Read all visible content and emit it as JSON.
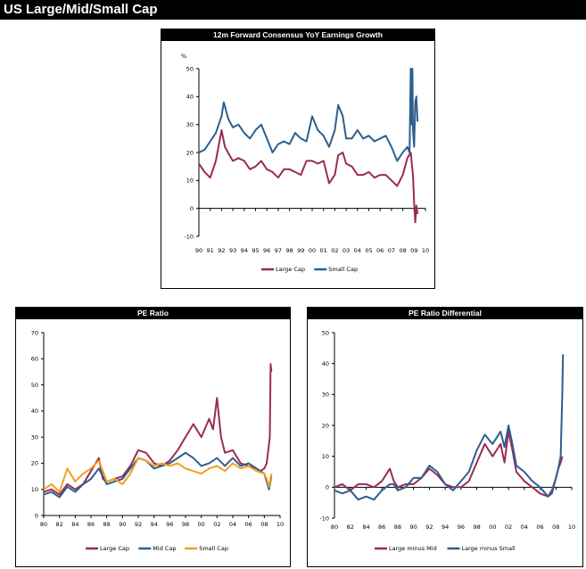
{
  "page": {
    "title": "US Large/Mid/Small Cap"
  },
  "colors": {
    "large": "#9a2b55",
    "mid": "#2e5f8e",
    "small": "#f0a020",
    "axis": "#000000"
  },
  "chart_data": [
    {
      "id": "earnings",
      "type": "line",
      "title": "12m Forward Consensus YoY Earnings Growth",
      "ylabel": "%",
      "ylim": [
        -10,
        50
      ],
      "yticks": [
        -10,
        0,
        10,
        20,
        30,
        40,
        50
      ],
      "xlim": [
        1990,
        2010
      ],
      "xticks": [
        "90",
        "91",
        "92",
        "93",
        "94",
        "95",
        "96",
        "97",
        "98",
        "99",
        "00",
        "01",
        "02",
        "03",
        "04",
        "05",
        "06",
        "07",
        "08",
        "09",
        "10"
      ],
      "legend": [
        "Large Cap",
        "Small Cap"
      ],
      "series": [
        {
          "name": "Large Cap",
          "color_key": "large",
          "x": [
            1990,
            1990.5,
            1991,
            1991.5,
            1992,
            1992.3,
            1992.7,
            1993,
            1993.5,
            1994,
            1994.5,
            1995,
            1995.5,
            1996,
            1996.5,
            1997,
            1997.5,
            1998,
            1998.5,
            1999,
            1999.5,
            2000,
            2000.5,
            2001,
            2001.5,
            2002,
            2002.3,
            2002.7,
            2003,
            2003.5,
            2004,
            2004.5,
            2005,
            2005.5,
            2006,
            2006.5,
            2007,
            2007.5,
            2008,
            2008.4,
            2008.7,
            2008.9,
            2009.0,
            2009.1,
            2009.2,
            2009.3
          ],
          "y": [
            16,
            13,
            11,
            17,
            28,
            22,
            19,
            17,
            18,
            17,
            14,
            15,
            17,
            14,
            13,
            11,
            14,
            14,
            13,
            12,
            17,
            17,
            16,
            17,
            9,
            12,
            19,
            20,
            16,
            15,
            12,
            12,
            13,
            11,
            12,
            12,
            10,
            8,
            12,
            18,
            20,
            12,
            2,
            -5,
            1,
            -2
          ]
        },
        {
          "name": "Small Cap",
          "color_key": "mid",
          "x": [
            1990,
            1990.5,
            1991,
            1991.5,
            1992,
            1992.2,
            1992.6,
            1993,
            1993.5,
            1994,
            1994.5,
            1995,
            1995.5,
            1996,
            1996.5,
            1997,
            1997.5,
            1998,
            1998.5,
            1999,
            1999.5,
            2000,
            2000.5,
            2001,
            2001.5,
            2002,
            2002.3,
            2002.7,
            2003,
            2003.5,
            2004,
            2004.5,
            2005,
            2005.5,
            2006,
            2006.5,
            2007,
            2007.5,
            2008,
            2008.4,
            2008.6,
            2008.7,
            2008.8,
            2008.85,
            2008.9,
            2009.0,
            2009.1,
            2009.2,
            2009.3
          ],
          "y": [
            20,
            21,
            24,
            27,
            33,
            38,
            32,
            29,
            30,
            27,
            25,
            28,
            30,
            25,
            20,
            23,
            24,
            23,
            27,
            25,
            24,
            33,
            28,
            26,
            22,
            28,
            37,
            33,
            25,
            25,
            28,
            25,
            26,
            24,
            25,
            26,
            22,
            17,
            20,
            22,
            20,
            50,
            30,
            50,
            28,
            22,
            38,
            40,
            31
          ]
        }
      ]
    },
    {
      "id": "pe",
      "type": "line",
      "title": "PE Ratio",
      "ylim": [
        0,
        70
      ],
      "yticks": [
        0,
        10,
        20,
        30,
        40,
        50,
        60,
        70
      ],
      "xlim": [
        1980,
        2010
      ],
      "xticks": [
        "80",
        "82",
        "84",
        "86",
        "88",
        "90",
        "92",
        "94",
        "96",
        "98",
        "00",
        "02",
        "04",
        "06",
        "08",
        "10"
      ],
      "legend": [
        "Large Cap",
        "Mid Cap",
        "Small Cap"
      ],
      "series": [
        {
          "name": "Large Cap",
          "color_key": "large",
          "x": [
            1980,
            1981,
            1982,
            1983,
            1984,
            1985,
            1986,
            1987,
            1987.5,
            1988,
            1989,
            1990,
            1991,
            1992,
            1993,
            1994,
            1995,
            1996,
            1997,
            1998,
            1999,
            2000,
            2001,
            2001.5,
            2002,
            2002.5,
            2003,
            2004,
            2005,
            2006,
            2007,
            2007.5,
            2008,
            2008.3,
            2008.5,
            2008.7,
            2008.8,
            2008.9
          ],
          "y": [
            9,
            10,
            8,
            12,
            10,
            12,
            17,
            22,
            14,
            13,
            14,
            15,
            19,
            25,
            24,
            20,
            19,
            21,
            25,
            30,
            35,
            30,
            37,
            33,
            45,
            30,
            24,
            25,
            20,
            19,
            18,
            17,
            18,
            20,
            25,
            30,
            58,
            55
          ]
        },
        {
          "name": "Mid Cap",
          "color_key": "mid",
          "x": [
            1980,
            1981,
            1982,
            1983,
            1984,
            1985,
            1986,
            1987,
            1988,
            1989,
            1990,
            1991,
            1992,
            1993,
            1994,
            1995,
            1996,
            1997,
            1998,
            1999,
            2000,
            2001,
            2002,
            2003,
            2004,
            2005,
            2006,
            2007,
            2008,
            2008.3,
            2008.6,
            2008.9
          ],
          "y": [
            8,
            9,
            7,
            11,
            9,
            12,
            14,
            18,
            12,
            13,
            14,
            18,
            22,
            21,
            18,
            19,
            20,
            22,
            24,
            22,
            19,
            20,
            22,
            19,
            22,
            19,
            20,
            18,
            16,
            13,
            10,
            15
          ]
        },
        {
          "name": "Small Cap",
          "color_key": "small",
          "x": [
            1980,
            1981,
            1982,
            1983,
            1984,
            1985,
            1986,
            1987,
            1988,
            1989,
            1990,
            1991,
            1992,
            1993,
            1994,
            1995,
            1996,
            1997,
            1998,
            1999,
            2000,
            2001,
            2002,
            2003,
            2004,
            2005,
            2006,
            2007,
            2008,
            2008.3,
            2008.6,
            2008.9
          ],
          "y": [
            10,
            12,
            9,
            18,
            13,
            16,
            18,
            21,
            13,
            14,
            12,
            16,
            22,
            21,
            19,
            20,
            19,
            20,
            18,
            17,
            16,
            18,
            19,
            17,
            20,
            18,
            19,
            17,
            16,
            14,
            11,
            16
          ]
        }
      ]
    },
    {
      "id": "diff",
      "type": "line",
      "title": "PE Ratio Differential",
      "ylim": [
        -10,
        50
      ],
      "yticks": [
        -10,
        0,
        10,
        20,
        30,
        40,
        50
      ],
      "xlim": [
        1980,
        2010
      ],
      "xticks": [
        "80",
        "82",
        "84",
        "86",
        "88",
        "90",
        "92",
        "94",
        "96",
        "98",
        "00",
        "02",
        "04",
        "06",
        "08",
        "10"
      ],
      "legend": [
        "Large minus Mid",
        "Large minus Small"
      ],
      "series": [
        {
          "name": "Large minus Mid",
          "color_key": "large",
          "x": [
            1980,
            1981,
            1982,
            1983,
            1984,
            1985,
            1986,
            1987,
            1987.5,
            1988,
            1989,
            1990,
            1991,
            1992,
            1993,
            1994,
            1995,
            1996,
            1997,
            1998,
            1999,
            2000,
            2001,
            2001.5,
            2002,
            2002.5,
            2003,
            2004,
            2005,
            2006,
            2007,
            2007.5,
            2008,
            2008.3,
            2008.6,
            2008.8
          ],
          "y": [
            0,
            1,
            -1,
            1,
            1,
            0,
            2,
            6,
            2,
            0,
            1,
            1,
            3,
            6,
            4,
            1,
            0,
            0,
            2,
            8,
            14,
            10,
            14,
            8,
            18,
            12,
            5,
            2,
            0,
            -2,
            -3,
            -1,
            3,
            6,
            8,
            10
          ]
        },
        {
          "name": "Large minus Small",
          "color_key": "mid",
          "x": [
            1980,
            1981,
            1982,
            1983,
            1984,
            1985,
            1986,
            1987,
            1987.5,
            1988,
            1989,
            1990,
            1991,
            1992,
            1993,
            1994,
            1995,
            1996,
            1997,
            1998,
            1999,
            2000,
            2001,
            2001.5,
            2002,
            2002.5,
            2003,
            2004,
            2005,
            2006,
            2007,
            2007.5,
            2008,
            2008.3,
            2008.6,
            2008.8,
            2008.9
          ],
          "y": [
            -1,
            -2,
            -1,
            -4,
            -3,
            -4,
            -1,
            1,
            1,
            -1,
            0,
            3,
            3,
            7,
            5,
            1,
            -1,
            2,
            5,
            12,
            17,
            14,
            18,
            13,
            20,
            14,
            7,
            5,
            2,
            0,
            -3,
            -2,
            3,
            6,
            10,
            30,
            43
          ]
        }
      ]
    }
  ]
}
